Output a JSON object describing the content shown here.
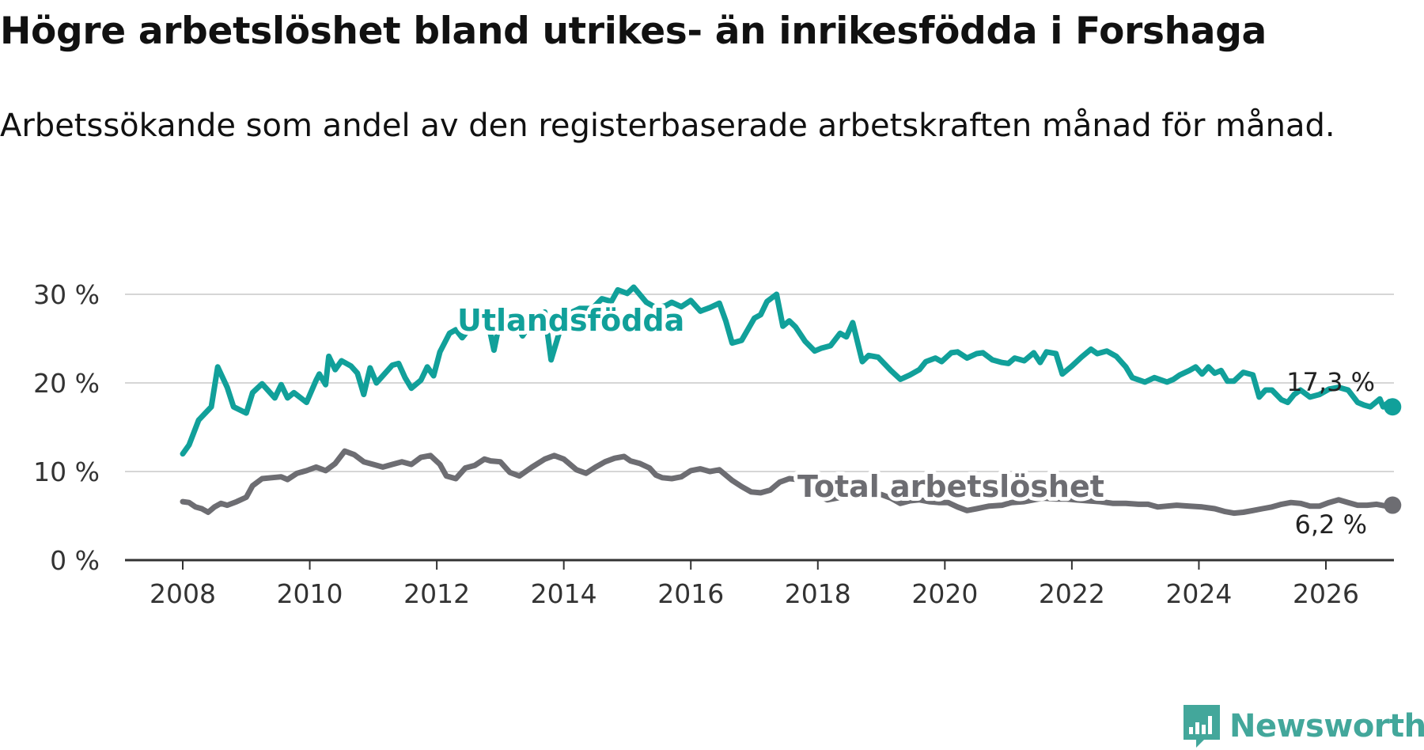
{
  "title": "Högre arbetslöshet bland utrikes- än inrikesfödda i Forshaga",
  "subtitle": "Arbetssökande som andel av den registerbaserade arbetskraften månad för månad.",
  "logo": {
    "text": "Newsworthy",
    "icon": "newsworthy-logo-icon",
    "color": "#43a79b"
  },
  "chart_data": {
    "type": "line",
    "title": "Högre arbetslöshet bland utrikes- än inrikesfödda i Forshaga",
    "subtitle": "Arbetssökande som andel av den registerbaserade arbetskraften månad för månad.",
    "xlabel": "",
    "ylabel": "",
    "xlim": [
      2007.75,
      2027.1
    ],
    "ylim": [
      0,
      30
    ],
    "x_ticks": [
      2008,
      2010,
      2012,
      2014,
      2016,
      2018,
      2020,
      2022,
      2024,
      2026
    ],
    "x_tick_labels": [
      "2008",
      "2010",
      "2012",
      "2014",
      "2016",
      "2018",
      "2020",
      "2022",
      "2024",
      "2026"
    ],
    "y_ticks": [
      0,
      10,
      20,
      30
    ],
    "y_tick_labels": [
      "0 %",
      "10 %",
      "20 %",
      "30 %"
    ],
    "grid": true,
    "series": [
      {
        "name": "Utlandsfödda",
        "color": "#11a09a",
        "end_label": "17,3 %",
        "points": [
          [
            2008.0,
            12.0
          ],
          [
            2008.1,
            13.0
          ],
          [
            2008.25,
            15.8
          ],
          [
            2008.45,
            17.3
          ],
          [
            2008.55,
            21.8
          ],
          [
            2008.7,
            19.5
          ],
          [
            2008.8,
            17.3
          ],
          [
            2009.0,
            16.6
          ],
          [
            2009.1,
            18.9
          ],
          [
            2009.25,
            19.9
          ],
          [
            2009.45,
            18.3
          ],
          [
            2009.55,
            19.8
          ],
          [
            2009.65,
            18.3
          ],
          [
            2009.75,
            18.9
          ],
          [
            2009.95,
            17.8
          ],
          [
            2010.1,
            20.3
          ],
          [
            2010.15,
            21.0
          ],
          [
            2010.25,
            19.8
          ],
          [
            2010.3,
            23.0
          ],
          [
            2010.4,
            21.5
          ],
          [
            2010.5,
            22.5
          ],
          [
            2010.65,
            21.9
          ],
          [
            2010.75,
            21.1
          ],
          [
            2010.85,
            18.7
          ],
          [
            2010.95,
            21.7
          ],
          [
            2011.05,
            20.0
          ],
          [
            2011.15,
            20.8
          ],
          [
            2011.3,
            22.0
          ],
          [
            2011.4,
            22.2
          ],
          [
            2011.5,
            20.6
          ],
          [
            2011.6,
            19.4
          ],
          [
            2011.75,
            20.3
          ],
          [
            2011.85,
            21.8
          ],
          [
            2011.95,
            20.8
          ],
          [
            2012.05,
            23.5
          ],
          [
            2012.2,
            25.6
          ],
          [
            2012.3,
            26.0
          ],
          [
            2012.4,
            25.1
          ],
          [
            2012.5,
            26.0
          ],
          [
            2012.65,
            26.5
          ],
          [
            2012.8,
            27.1
          ],
          [
            2012.9,
            23.7
          ],
          [
            2013.0,
            27.2
          ],
          [
            2013.2,
            27.6
          ],
          [
            2013.35,
            25.3
          ],
          [
            2013.5,
            27.0
          ],
          [
            2013.6,
            26.4
          ],
          [
            2013.7,
            28.0
          ],
          [
            2013.8,
            22.6
          ],
          [
            2013.95,
            26.2
          ],
          [
            2014.1,
            27.9
          ],
          [
            2014.25,
            28.4
          ],
          [
            2014.45,
            28.4
          ],
          [
            2014.6,
            29.5
          ],
          [
            2014.75,
            29.2
          ],
          [
            2014.85,
            30.5
          ],
          [
            2015.0,
            30.1
          ],
          [
            2015.1,
            30.8
          ],
          [
            2015.3,
            29.1
          ],
          [
            2015.45,
            28.5
          ],
          [
            2015.6,
            28.7
          ],
          [
            2015.7,
            29.1
          ],
          [
            2015.85,
            28.6
          ],
          [
            2016.0,
            29.3
          ],
          [
            2016.15,
            28.1
          ],
          [
            2016.3,
            28.5
          ],
          [
            2016.45,
            29.0
          ],
          [
            2016.55,
            27.0
          ],
          [
            2016.65,
            24.5
          ],
          [
            2016.8,
            24.8
          ],
          [
            2017.0,
            27.3
          ],
          [
            2017.1,
            27.7
          ],
          [
            2017.2,
            29.2
          ],
          [
            2017.35,
            30.0
          ],
          [
            2017.45,
            26.4
          ],
          [
            2017.55,
            27.0
          ],
          [
            2017.65,
            26.3
          ],
          [
            2017.8,
            24.7
          ],
          [
            2017.95,
            23.6
          ],
          [
            2018.05,
            23.9
          ],
          [
            2018.2,
            24.2
          ],
          [
            2018.35,
            25.6
          ],
          [
            2018.45,
            25.2
          ],
          [
            2018.55,
            26.8
          ],
          [
            2018.7,
            22.4
          ],
          [
            2018.8,
            23.1
          ],
          [
            2018.95,
            22.9
          ],
          [
            2019.15,
            21.4
          ],
          [
            2019.3,
            20.4
          ],
          [
            2019.45,
            20.9
          ],
          [
            2019.6,
            21.5
          ],
          [
            2019.7,
            22.4
          ],
          [
            2019.85,
            22.8
          ],
          [
            2019.95,
            22.4
          ],
          [
            2020.1,
            23.4
          ],
          [
            2020.2,
            23.5
          ],
          [
            2020.35,
            22.8
          ],
          [
            2020.5,
            23.3
          ],
          [
            2020.6,
            23.4
          ],
          [
            2020.75,
            22.6
          ],
          [
            2020.9,
            22.3
          ],
          [
            2021.0,
            22.2
          ],
          [
            2021.1,
            22.8
          ],
          [
            2021.25,
            22.5
          ],
          [
            2021.4,
            23.4
          ],
          [
            2021.5,
            22.3
          ],
          [
            2021.6,
            23.5
          ],
          [
            2021.75,
            23.3
          ],
          [
            2021.85,
            21.0
          ],
          [
            2022.0,
            21.9
          ],
          [
            2022.15,
            22.9
          ],
          [
            2022.3,
            23.8
          ],
          [
            2022.4,
            23.3
          ],
          [
            2022.55,
            23.6
          ],
          [
            2022.7,
            23.0
          ],
          [
            2022.85,
            21.8
          ],
          [
            2022.95,
            20.6
          ],
          [
            2023.15,
            20.1
          ],
          [
            2023.3,
            20.6
          ],
          [
            2023.5,
            20.1
          ],
          [
            2023.6,
            20.4
          ],
          [
            2023.7,
            20.9
          ],
          [
            2023.85,
            21.4
          ],
          [
            2023.95,
            21.8
          ],
          [
            2024.05,
            21.0
          ],
          [
            2024.15,
            21.8
          ],
          [
            2024.25,
            21.1
          ],
          [
            2024.35,
            21.4
          ],
          [
            2024.45,
            20.2
          ],
          [
            2024.55,
            20.2
          ],
          [
            2024.7,
            21.2
          ],
          [
            2024.85,
            20.9
          ],
          [
            2024.95,
            18.4
          ],
          [
            2025.05,
            19.2
          ],
          [
            2025.15,
            19.2
          ],
          [
            2025.3,
            18.1
          ],
          [
            2025.4,
            17.8
          ],
          [
            2025.5,
            18.7
          ],
          [
            2025.6,
            19.2
          ],
          [
            2025.75,
            18.4
          ],
          [
            2025.9,
            18.7
          ],
          [
            2026.05,
            19.3
          ],
          [
            2026.2,
            19.5
          ],
          [
            2026.35,
            19.2
          ],
          [
            2026.5,
            17.8
          ],
          [
            2026.6,
            17.5
          ],
          [
            2026.7,
            17.3
          ],
          [
            2026.85,
            18.2
          ],
          [
            2026.9,
            17.3
          ],
          [
            2027.0,
            17.9
          ],
          [
            2027.05,
            17.3
          ]
        ]
      },
      {
        "name": "Total arbetslöshet",
        "color": "#6d6d72",
        "end_label": "6,2 %",
        "points": [
          [
            2008.0,
            6.6
          ],
          [
            2008.1,
            6.5
          ],
          [
            2008.2,
            6.0
          ],
          [
            2008.3,
            5.8
          ],
          [
            2008.4,
            5.4
          ],
          [
            2008.5,
            6.0
          ],
          [
            2008.6,
            6.4
          ],
          [
            2008.7,
            6.2
          ],
          [
            2008.85,
            6.6
          ],
          [
            2009.0,
            7.1
          ],
          [
            2009.1,
            8.4
          ],
          [
            2009.25,
            9.2
          ],
          [
            2009.4,
            9.3
          ],
          [
            2009.55,
            9.4
          ],
          [
            2009.65,
            9.1
          ],
          [
            2009.8,
            9.8
          ],
          [
            2009.95,
            10.1
          ],
          [
            2010.1,
            10.5
          ],
          [
            2010.25,
            10.1
          ],
          [
            2010.4,
            10.9
          ],
          [
            2010.55,
            12.3
          ],
          [
            2010.7,
            11.9
          ],
          [
            2010.85,
            11.1
          ],
          [
            2011.0,
            10.8
          ],
          [
            2011.15,
            10.5
          ],
          [
            2011.3,
            10.8
          ],
          [
            2011.45,
            11.1
          ],
          [
            2011.6,
            10.8
          ],
          [
            2011.75,
            11.6
          ],
          [
            2011.9,
            11.8
          ],
          [
            2012.05,
            10.8
          ],
          [
            2012.15,
            9.5
          ],
          [
            2012.3,
            9.2
          ],
          [
            2012.45,
            10.4
          ],
          [
            2012.6,
            10.7
          ],
          [
            2012.75,
            11.4
          ],
          [
            2012.85,
            11.2
          ],
          [
            2013.0,
            11.1
          ],
          [
            2013.15,
            9.9
          ],
          [
            2013.3,
            9.5
          ],
          [
            2013.5,
            10.5
          ],
          [
            2013.7,
            11.4
          ],
          [
            2013.85,
            11.8
          ],
          [
            2014.0,
            11.4
          ],
          [
            2014.2,
            10.2
          ],
          [
            2014.35,
            9.8
          ],
          [
            2014.5,
            10.5
          ],
          [
            2014.65,
            11.1
          ],
          [
            2014.8,
            11.5
          ],
          [
            2014.95,
            11.7
          ],
          [
            2015.05,
            11.2
          ],
          [
            2015.2,
            10.9
          ],
          [
            2015.35,
            10.4
          ],
          [
            2015.45,
            9.6
          ],
          [
            2015.55,
            9.3
          ],
          [
            2015.7,
            9.2
          ],
          [
            2015.85,
            9.4
          ],
          [
            2016.0,
            10.1
          ],
          [
            2016.15,
            10.3
          ],
          [
            2016.3,
            10.0
          ],
          [
            2016.45,
            10.2
          ],
          [
            2016.65,
            9.0
          ],
          [
            2016.8,
            8.3
          ],
          [
            2016.95,
            7.7
          ],
          [
            2017.1,
            7.6
          ],
          [
            2017.25,
            7.9
          ],
          [
            2017.4,
            8.8
          ],
          [
            2017.55,
            9.2
          ],
          [
            2017.7,
            9.1
          ],
          [
            2017.85,
            8.8
          ],
          [
            2018.0,
            7.3
          ],
          [
            2018.15,
            6.8
          ],
          [
            2018.3,
            7.0
          ],
          [
            2018.45,
            7.3
          ],
          [
            2018.6,
            7.5
          ],
          [
            2018.75,
            7.7
          ],
          [
            2018.85,
            7.4
          ],
          [
            2019.0,
            7.4
          ],
          [
            2019.15,
            7.0
          ],
          [
            2019.3,
            6.4
          ],
          [
            2019.45,
            6.7
          ],
          [
            2019.6,
            6.8
          ],
          [
            2019.75,
            6.6
          ],
          [
            2019.9,
            6.5
          ],
          [
            2020.05,
            6.5
          ],
          [
            2020.2,
            6.0
          ],
          [
            2020.35,
            5.6
          ],
          [
            2020.5,
            5.8
          ],
          [
            2020.7,
            6.1
          ],
          [
            2020.9,
            6.2
          ],
          [
            2021.05,
            6.5
          ],
          [
            2021.25,
            6.6
          ],
          [
            2021.4,
            6.8
          ],
          [
            2021.55,
            7.0
          ],
          [
            2021.75,
            6.9
          ],
          [
            2021.9,
            6.9
          ],
          [
            2022.05,
            6.8
          ],
          [
            2022.25,
            6.7
          ],
          [
            2022.45,
            6.6
          ],
          [
            2022.65,
            6.4
          ],
          [
            2022.85,
            6.4
          ],
          [
            2023.05,
            6.3
          ],
          [
            2023.2,
            6.3
          ],
          [
            2023.35,
            6.0
          ],
          [
            2023.5,
            6.1
          ],
          [
            2023.65,
            6.2
          ],
          [
            2023.85,
            6.1
          ],
          [
            2024.05,
            6.0
          ],
          [
            2024.25,
            5.8
          ],
          [
            2024.4,
            5.5
          ],
          [
            2024.55,
            5.3
          ],
          [
            2024.7,
            5.4
          ],
          [
            2024.85,
            5.6
          ],
          [
            2025.0,
            5.8
          ],
          [
            2025.15,
            6.0
          ],
          [
            2025.3,
            6.3
          ],
          [
            2025.45,
            6.5
          ],
          [
            2025.6,
            6.4
          ],
          [
            2025.75,
            6.1
          ],
          [
            2025.9,
            6.1
          ],
          [
            2026.05,
            6.5
          ],
          [
            2026.2,
            6.8
          ],
          [
            2026.35,
            6.5
          ],
          [
            2026.5,
            6.2
          ],
          [
            2026.65,
            6.2
          ],
          [
            2026.8,
            6.3
          ],
          [
            2026.95,
            6.1
          ],
          [
            2027.05,
            6.2
          ]
        ],
        "label": "Total arbetslöshet"
      }
    ]
  }
}
